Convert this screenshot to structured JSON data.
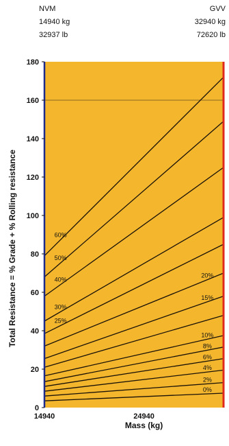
{
  "header": {
    "left": {
      "title": "NVM",
      "kg": "14940 kg",
      "lb": "32937 lb"
    },
    "right": {
      "title": "GVV",
      "kg": "32940 kg",
      "lb": "72620 lb"
    }
  },
  "colors": {
    "background": "#f3b62d",
    "left_border": "#1d2a8a",
    "right_border": "#e0291c",
    "line": "#1a1208",
    "reference_line": "#8a6a20"
  },
  "chart_data": {
    "type": "line",
    "title": "",
    "xlabel": "Mass (kg)",
    "ylabel": "Total Resistance = % Grade + % Rolling resistance",
    "xlim": [
      14940,
      32940
    ],
    "ylim": [
      0,
      180
    ],
    "xticks": [
      "14940",
      "24940"
    ],
    "yticks": [
      "0",
      "20",
      "40",
      "60",
      "80",
      "100",
      "120",
      "140",
      "160",
      "180"
    ],
    "grid": false,
    "reference_line_y": 160,
    "series": [
      {
        "name": "0%",
        "y_start": 3.5,
        "y_end": 7.5
      },
      {
        "name": "2%",
        "y_start": 6,
        "y_end": 13
      },
      {
        "name": "4%",
        "y_start": 8.5,
        "y_end": 19.5
      },
      {
        "name": "6%",
        "y_start": 11,
        "y_end": 25.5
      },
      {
        "name": "8%",
        "y_start": 13.5,
        "y_end": 31.5
      },
      {
        "name": "10%",
        "y_start": 16.5,
        "y_end": 37.5
      },
      {
        "name": "",
        "y_start": 21,
        "y_end": 48
      },
      {
        "name": "15%",
        "y_start": 25.5,
        "y_end": 58
      },
      {
        "name": "20%",
        "y_start": 32,
        "y_end": 70
      },
      {
        "name": "25%",
        "y_start": 38.5,
        "y_end": 85
      },
      {
        "name": "30%",
        "y_start": 45,
        "y_end": 99
      },
      {
        "name": "40%",
        "y_start": 58,
        "y_end": 125
      },
      {
        "name": "50%",
        "y_start": 68,
        "y_end": 149
      },
      {
        "name": "60%",
        "y_start": 79,
        "y_end": 172
      }
    ],
    "line_labels_left": [
      "60%",
      "50%",
      "40%",
      "30%",
      "25%"
    ],
    "line_labels_right": [
      "20%",
      "15%",
      "10%",
      "8%",
      "6%",
      "4%",
      "2%",
      "0%"
    ]
  }
}
